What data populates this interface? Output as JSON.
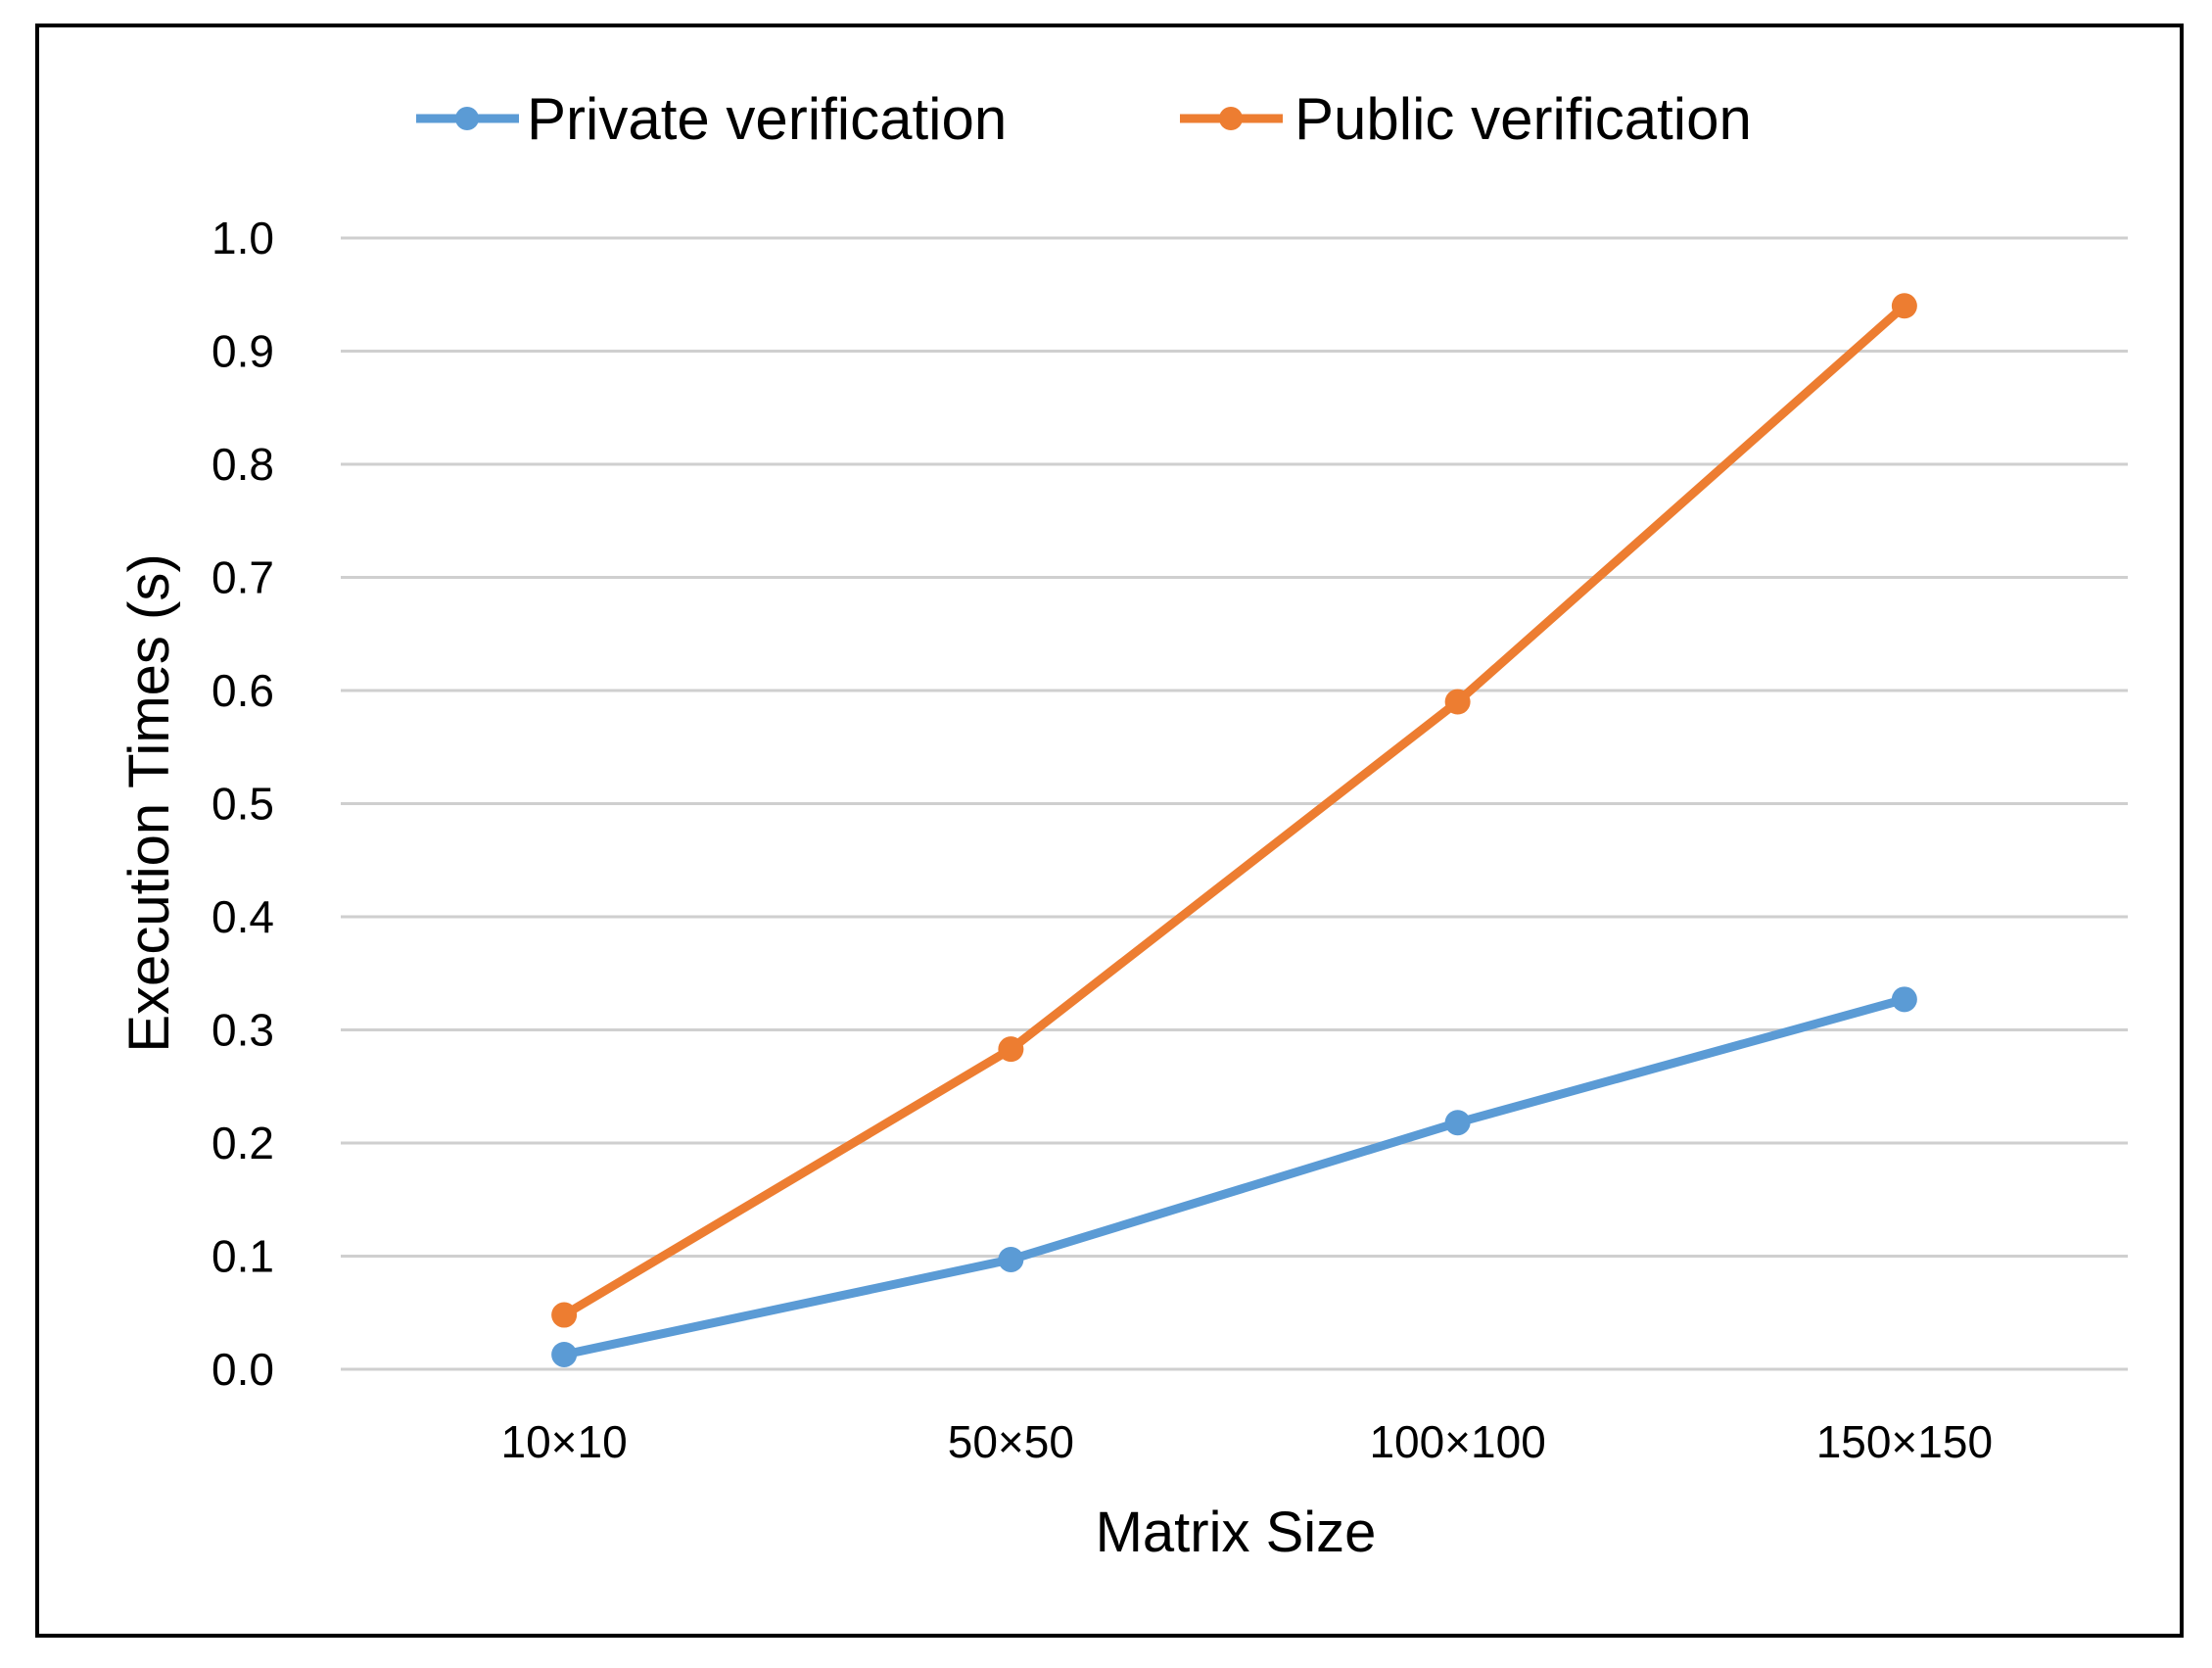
{
  "chart_data": {
    "type": "line",
    "title": "",
    "xlabel": "Matrix Size",
    "ylabel": "Execution Times (s)",
    "categories": [
      "10×10",
      "50×50",
      "100×100",
      "150×150"
    ],
    "ylim": [
      0,
      1.0
    ],
    "yticks": [
      "0.0",
      "0.1",
      "0.2",
      "0.3",
      "0.4",
      "0.5",
      "0.6",
      "0.7",
      "0.8",
      "0.9",
      "1.0"
    ],
    "grid": true,
    "legend_position": "top",
    "series": [
      {
        "name": "Private verification",
        "color": "#5B9BD5",
        "values": [
          0.013,
          0.097,
          0.218,
          0.327
        ]
      },
      {
        "name": "Public verification",
        "color": "#ED7D31",
        "values": [
          0.048,
          0.283,
          0.59,
          0.94
        ]
      }
    ]
  }
}
